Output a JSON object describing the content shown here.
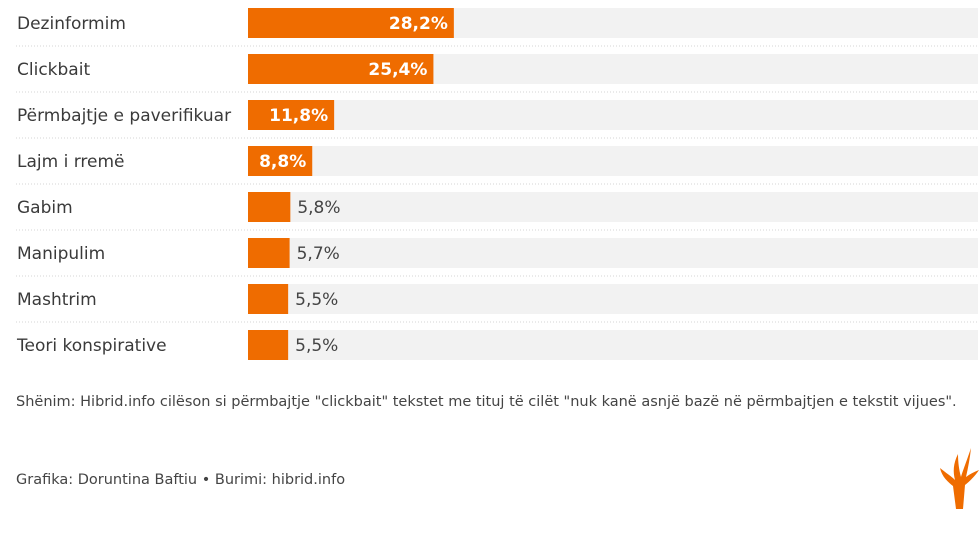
{
  "chart_data": {
    "type": "bar",
    "orientation": "horizontal",
    "categories": [
      "Dezinformim",
      "Clickbait",
      "Përmbajtje e paverifikuar",
      "Lajm i rremë",
      "Gabim",
      "Manipulim",
      "Mashtrim",
      "Teori konspirative"
    ],
    "values": [
      28.2,
      25.4,
      11.8,
      8.8,
      5.8,
      5.7,
      5.5,
      5.5
    ],
    "value_labels": [
      "28,2%",
      "25,4%",
      "11,8%",
      "8,8%",
      "5,8%",
      "5,7%",
      "5,5%",
      "5,5%"
    ],
    "xlim": [
      0,
      100
    ],
    "unit": "%",
    "colors": {
      "bar": "#ef6c00",
      "track": "#f2f2f2",
      "label_inside": "#ffffff",
      "label_outside": "#444444"
    }
  },
  "footer": {
    "note": "Shënim: Hibrid.info cilëson si përmbajtje \"clickbait\" tekstet me tituj të cilët \"nuk kanë asnjë bazë në përmbajtjen e tekstit vijues\".",
    "credit": "Grafika: Doruntina Baftiu • Burimi: hibrid.info"
  },
  "logo": {
    "icon": "rfe-rl-flame-icon",
    "color": "#ef6c00"
  }
}
